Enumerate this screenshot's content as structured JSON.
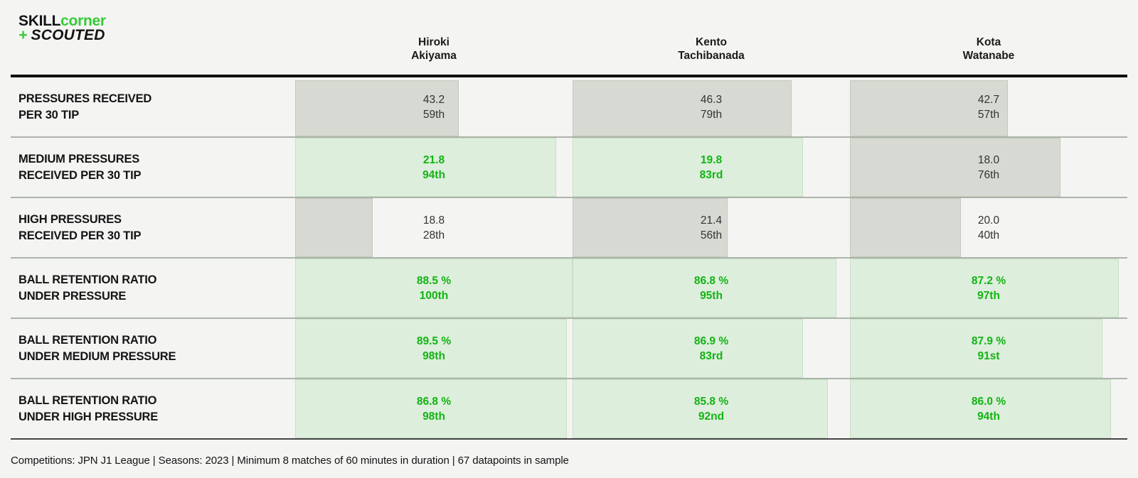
{
  "logo": {
    "skill": "SKILL",
    "corner": "corner",
    "plus": "+",
    "scouted": "SCOUTED"
  },
  "colors": {
    "background": "#f4f4f3",
    "brand_green": "#35cc35",
    "value_green": "#12b412",
    "bar_green_fill": "#ddeedd",
    "bar_gray_fill": "#d6dad2",
    "rule_top": "#101010",
    "rule_bottom": "#454545"
  },
  "players": [
    {
      "line1": "Hiroki",
      "line2": "Akiyama"
    },
    {
      "line1": "Kento",
      "line2": "Tachibanada"
    },
    {
      "line1": "Kota",
      "line2": "Watanabe"
    }
  ],
  "table": {
    "rows": [
      {
        "label_line1": "PRESSURES RECEIVED",
        "label_line2": "PER 30 TIP",
        "cells": [
          {
            "value": "43.2",
            "percentile": "59th",
            "percentile_value": 59,
            "tone": "gray"
          },
          {
            "value": "46.3",
            "percentile": "79th",
            "percentile_value": 79,
            "tone": "gray"
          },
          {
            "value": "42.7",
            "percentile": "57th",
            "percentile_value": 57,
            "tone": "gray"
          }
        ]
      },
      {
        "label_line1": "MEDIUM PRESSURES",
        "label_line2": "RECEIVED PER 30 TIP",
        "cells": [
          {
            "value": "21.8",
            "percentile": "94th",
            "percentile_value": 94,
            "tone": "green"
          },
          {
            "value": "19.8",
            "percentile": "83rd",
            "percentile_value": 83,
            "tone": "green"
          },
          {
            "value": "18.0",
            "percentile": "76th",
            "percentile_value": 76,
            "tone": "gray"
          }
        ]
      },
      {
        "label_line1": "HIGH PRESSURES",
        "label_line2": "RECEIVED PER 30 TIP",
        "cells": [
          {
            "value": "18.8",
            "percentile": "28th",
            "percentile_value": 28,
            "tone": "gray"
          },
          {
            "value": "21.4",
            "percentile": "56th",
            "percentile_value": 56,
            "tone": "gray"
          },
          {
            "value": "20.0",
            "percentile": "40th",
            "percentile_value": 40,
            "tone": "gray"
          }
        ]
      },
      {
        "label_line1": "BALL RETENTION RATIO",
        "label_line2": "UNDER PRESSURE",
        "cells": [
          {
            "value": "88.5 %",
            "percentile": "100th",
            "percentile_value": 100,
            "tone": "green"
          },
          {
            "value": "86.8 %",
            "percentile": "95th",
            "percentile_value": 95,
            "tone": "green"
          },
          {
            "value": "87.2 %",
            "percentile": "97th",
            "percentile_value": 97,
            "tone": "green"
          }
        ]
      },
      {
        "label_line1": "BALL RETENTION RATIO",
        "label_line2": "UNDER MEDIUM PRESSURE",
        "cells": [
          {
            "value": "89.5 %",
            "percentile": "98th",
            "percentile_value": 98,
            "tone": "green"
          },
          {
            "value": "86.9 %",
            "percentile": "83rd",
            "percentile_value": 83,
            "tone": "green"
          },
          {
            "value": "87.9 %",
            "percentile": "91st",
            "percentile_value": 91,
            "tone": "green"
          }
        ]
      },
      {
        "label_line1": "BALL RETENTION RATIO",
        "label_line2": "UNDER HIGH PRESSURE",
        "cells": [
          {
            "value": "86.8 %",
            "percentile": "98th",
            "percentile_value": 98,
            "tone": "green"
          },
          {
            "value": "85.8 %",
            "percentile": "92nd",
            "percentile_value": 92,
            "tone": "green"
          },
          {
            "value": "86.0 %",
            "percentile": "94th",
            "percentile_value": 94,
            "tone": "green"
          }
        ]
      }
    ]
  },
  "footer": {
    "text": "Competitions: JPN J1 League | Seasons: 2023 | Minimum 8 matches of 60 minutes in duration | 67 datapoints in sample"
  },
  "chart_data": {
    "type": "bar",
    "subtype": "horizontal-percentile-bars",
    "title": "SkillCorner + Scouted pressure profile comparison",
    "columns": [
      "Hiroki Akiyama",
      "Kento Tachibanada",
      "Kota Watanabe"
    ],
    "percentile_axis_range": [
      0,
      100
    ],
    "grid": false,
    "metrics": [
      {
        "label": "Pressures received per 30 TIP",
        "values": [
          43.2,
          46.3,
          42.7
        ],
        "percentiles": [
          59,
          79,
          57
        ]
      },
      {
        "label": "Medium pressures received per 30 TIP",
        "values": [
          21.8,
          19.8,
          18.0
        ],
        "percentiles": [
          94,
          83,
          76
        ]
      },
      {
        "label": "High pressures received per 30 TIP",
        "values": [
          18.8,
          21.4,
          20.0
        ],
        "percentiles": [
          28,
          56,
          40
        ]
      },
      {
        "label": "Ball retention ratio under pressure (%)",
        "values": [
          88.5,
          86.8,
          87.2
        ],
        "percentiles": [
          100,
          95,
          97
        ]
      },
      {
        "label": "Ball retention ratio under medium pressure (%)",
        "values": [
          89.5,
          86.9,
          87.9
        ],
        "percentiles": [
          98,
          83,
          91
        ]
      },
      {
        "label": "Ball retention ratio under high pressure (%)",
        "values": [
          86.8,
          85.8,
          86.0
        ],
        "percentiles": [
          98,
          92,
          94
        ]
      }
    ],
    "color_rule": "percentile >= 80 rendered green, otherwise gray"
  }
}
